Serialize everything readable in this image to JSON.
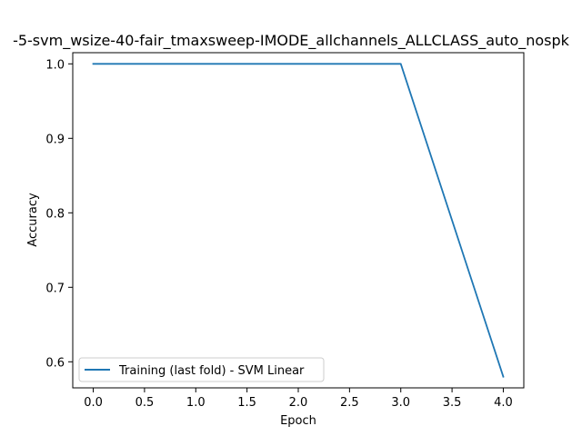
{
  "chart_data": {
    "type": "line",
    "title": "-5-svm_wsize-40-fair_tmaxsweep-IMODE_allchannels_ALLCLASS_auto_nospk",
    "xlabel": "Epoch",
    "ylabel": "Accuracy",
    "xlim": [
      -0.2,
      4.2
    ],
    "ylim": [
      0.565,
      1.015
    ],
    "xticks": [
      0.0,
      0.5,
      1.0,
      1.5,
      2.0,
      2.5,
      3.0,
      3.5,
      4.0
    ],
    "xtick_labels": [
      "0.0",
      "0.5",
      "1.0",
      "1.5",
      "2.0",
      "2.5",
      "3.0",
      "3.5",
      "4.0"
    ],
    "yticks": [
      0.6,
      0.7,
      0.8,
      0.9,
      1.0
    ],
    "ytick_labels": [
      "0.6",
      "0.7",
      "0.8",
      "0.9",
      "1.0"
    ],
    "grid": false,
    "legend_position": "lower-left",
    "series": [
      {
        "name": "Training (last fold) - SVM Linear",
        "color": "#1f77b4",
        "x": [
          0,
          1,
          2,
          3,
          4
        ],
        "y": [
          1.0,
          1.0,
          1.0,
          1.0,
          0.58
        ]
      }
    ]
  }
}
